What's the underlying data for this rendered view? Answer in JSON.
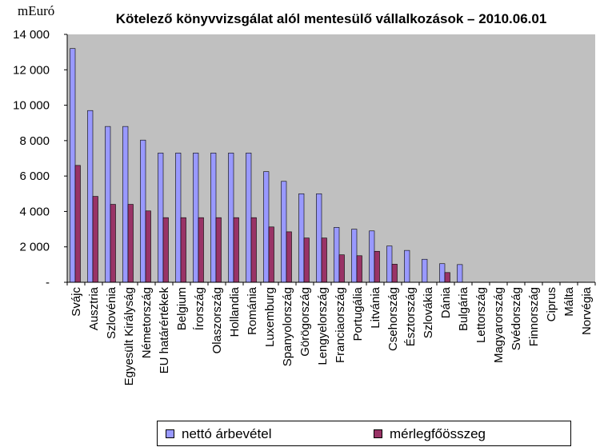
{
  "chart_data": {
    "type": "bar",
    "unit_label": "mEuró",
    "title": "Kötelező könyvvizsgálat alól mentesülő vállalkozások – 2010.06.01",
    "categories": [
      "Svájc",
      "Ausztria",
      "Szlovénia",
      "Egyesült Királyság",
      "Németország",
      "EU határértékek",
      "Belgium",
      "Írország",
      "Olaszország",
      "Hollandia",
      "Románia",
      "Luxemburg",
      "Spanyolország",
      "Görögország",
      "Lengyelország",
      "Franciaország",
      "Portugália",
      "Litvánia",
      "Csehország",
      "Észtország",
      "Szlovákia",
      "Dánia",
      "Bulgária",
      "Lettország",
      "Magyarország",
      "Svédország",
      "Finnország",
      "Ciprus",
      "Málta",
      "Norvégia"
    ],
    "series": [
      {
        "name": "nettó árbevétel",
        "color": "#9999ff",
        "values": [
          13200,
          9700,
          8800,
          8800,
          8030,
          7300,
          7300,
          7300,
          7300,
          7300,
          7300,
          6250,
          5700,
          5000,
          5000,
          3100,
          3000,
          2900,
          2050,
          1800,
          1300,
          1050,
          1000,
          10,
          10,
          10,
          10,
          10,
          10,
          10
        ]
      },
      {
        "name": "mérlegfőösszeg",
        "color": "#993366",
        "values": [
          6600,
          4850,
          4400,
          4400,
          4030,
          3650,
          3650,
          3650,
          3650,
          3650,
          3650,
          3125,
          2850,
          2500,
          2500,
          1550,
          1500,
          1750,
          1020,
          0,
          0,
          550,
          0,
          0,
          0,
          0,
          0,
          0,
          0,
          0
        ]
      }
    ],
    "ylim": [
      0,
      14000
    ],
    "y_ticks": [
      0,
      2000,
      4000,
      6000,
      8000,
      10000,
      12000,
      14000
    ],
    "y_tick_labels": [
      "-",
      "2 000",
      "4 000",
      "6 000",
      "8 000",
      "10 000",
      "12 000",
      "14 000"
    ],
    "grid": false,
    "legend_position": "bottom",
    "plot_background": "#c0c0c0"
  }
}
